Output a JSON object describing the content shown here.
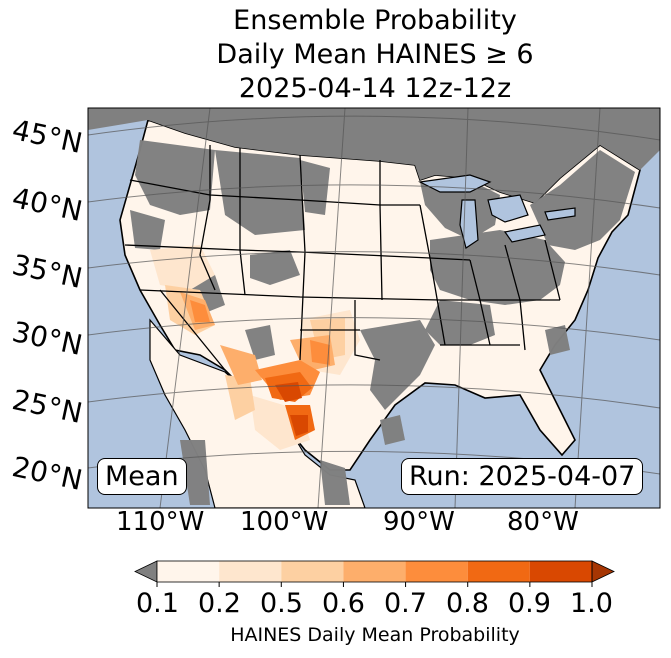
{
  "title": {
    "line1": "Ensemble Probability",
    "line2": "Daily Mean HAINES ≥ 6",
    "line3": "2025-04-14 12z-12z"
  },
  "map": {
    "lat_labels": [
      "45°N",
      "40°N",
      "35°N",
      "30°N",
      "25°N",
      "20°N"
    ],
    "lon_labels": [
      "110°W",
      "100°W",
      "90°W",
      "80°W"
    ],
    "stat_box": "Mean",
    "run_box": "Run: 2025-04-07",
    "ocean_color": "#b0c4de",
    "missing_color": "#808080"
  },
  "colorbar": {
    "ticks": [
      "0.1",
      "0.2",
      "0.5",
      "0.6",
      "0.7",
      "0.8",
      "0.9",
      "1.0"
    ],
    "colors": [
      "#fff5eb",
      "#fee6ce",
      "#fdd0a2",
      "#fdae6b",
      "#fd8d3c",
      "#f16913",
      "#d94801",
      "#a63603"
    ],
    "under_color": "#808080",
    "label": "HAINES Daily Mean Probability"
  }
}
